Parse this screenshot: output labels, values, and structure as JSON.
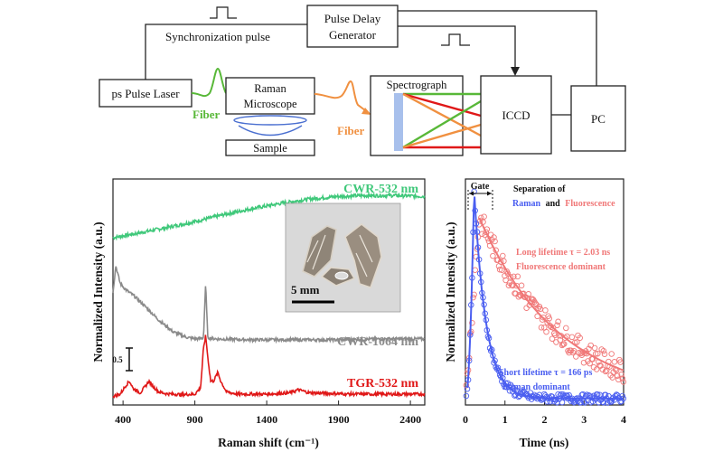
{
  "schematic": {
    "laser": "ps Pulse Laser",
    "sync_pulse": "Synchronization pulse",
    "pdg_line1": "Pulse Delay",
    "pdg_line2": "Generator",
    "fiber1": "Fiber",
    "fiber2": "Fiber",
    "microscope_line1": "Raman",
    "microscope_line2": "Microscope",
    "sample": "Sample",
    "spectrograph": "Spectrograph",
    "iccd": "ICCD",
    "pc": "PC"
  },
  "colors": {
    "green": "#3fc87a",
    "gray": "#8a8a8a",
    "red": "#e01818",
    "blue": "#4a5ef0",
    "pink": "#f07878",
    "fiber_green": "#58b838",
    "fiber_orange": "#f09040",
    "grating": "#a8c0ec"
  },
  "chart_data": [
    {
      "type": "line",
      "xlabel": "Raman shift (cm⁻¹)",
      "ylabel": "Normalized Intensity (a.u.)",
      "xlim": [
        330,
        2500
      ],
      "x_ticks": [
        400,
        900,
        1400,
        1900,
        2400
      ],
      "scale_bar_label": "0.5",
      "series": [
        {
          "name": "CWR-532 nm",
          "color": "#3fc87a",
          "x": [
            330,
            500,
            700,
            900,
            1100,
            1300,
            1500,
            1700,
            1900,
            2100,
            2300,
            2500
          ],
          "y": [
            3.85,
            3.95,
            4.08,
            4.22,
            4.38,
            4.52,
            4.64,
            4.74,
            4.8,
            4.82,
            4.82,
            4.8
          ]
        },
        {
          "name": "CWR-1064 nm",
          "color": "#8a8a8a",
          "x": [
            330,
            350,
            380,
            420,
            480,
            560,
            650,
            750,
            850,
            920,
            960,
            975,
            990,
            1050,
            1300,
            1600,
            1900,
            2200,
            2500
          ],
          "y": [
            2.6,
            3.2,
            2.8,
            2.65,
            2.5,
            2.25,
            1.95,
            1.68,
            1.55,
            1.52,
            1.55,
            2.8,
            1.55,
            1.52,
            1.5,
            1.5,
            1.5,
            1.52,
            1.52
          ]
        },
        {
          "name": "TGR-532 nm",
          "color": "#e01818",
          "x": [
            330,
            380,
            420,
            445,
            470,
            520,
            560,
            580,
            600,
            650,
            700,
            800,
            900,
            940,
            960,
            975,
            990,
            1010,
            1030,
            1060,
            1080,
            1120,
            1200,
            1400,
            1560,
            1620,
            1700,
            2000,
            2500
          ],
          "y": [
            0.2,
            0.25,
            0.45,
            0.55,
            0.38,
            0.28,
            0.45,
            0.55,
            0.45,
            0.3,
            0.26,
            0.24,
            0.25,
            0.4,
            1.3,
            1.6,
            1.1,
            0.55,
            0.55,
            0.75,
            0.55,
            0.3,
            0.25,
            0.25,
            0.28,
            0.35,
            0.28,
            0.25,
            0.25
          ]
        }
      ]
    },
    {
      "type": "scatter",
      "xlabel": "Time (ns)",
      "ylabel": "Normalized Intensity (a.u.)",
      "xlim": [
        0,
        4
      ],
      "x_ticks": [
        0,
        1,
        2,
        3,
        4
      ],
      "gate_label": "Gate",
      "legend_title": "Separation of",
      "legend_raman": "Raman",
      "legend_and": "and",
      "legend_fluor": "Fluorescence",
      "series": [
        {
          "name": "Raman",
          "color": "#4a5ef0",
          "lifetime_label": "Short lifetime τ = 166 ps",
          "dominant_label": "Raman dominant",
          "peak_time": 0.22,
          "tau_ns": 0.166
        },
        {
          "name": "Fluorescence",
          "color": "#f07878",
          "lifetime_label": "Long lifetime τ = 2.03 ns",
          "dominant_label": "Fluorescence dominant",
          "peak_time": 0.35,
          "tau_ns": 2.03
        }
      ]
    }
  ],
  "inset": {
    "scale_label": "5 mm"
  }
}
